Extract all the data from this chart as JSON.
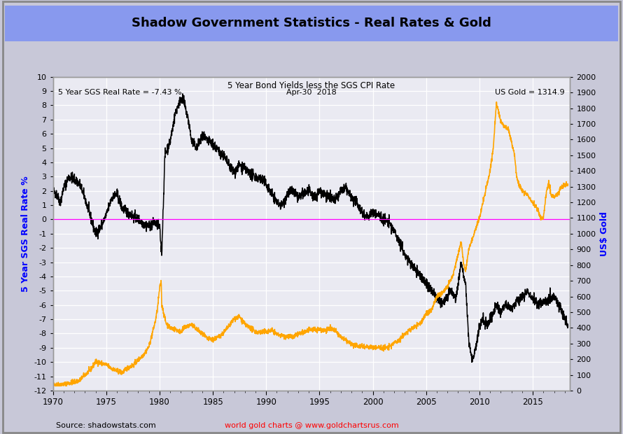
{
  "title": "Shadow Government Statistics - Real Rates & Gold",
  "subtitle": "5 Year Bond Yields less the SGS CPI Rate",
  "annotation_left": "5 Year SGS Real Rate = -7.43 %",
  "annotation_center": "Apr-30  2018",
  "annotation_right": "US Gold = 1314.9",
  "ylabel_left": "5 Year SGS Real Rate %",
  "ylabel_right": "US$ Gold",
  "source_left": "Source: shadowstats.com",
  "source_right": "world gold charts @ www.goldchartsrus.com",
  "ylim_left": [
    -12,
    10
  ],
  "ylim_right": [
    0,
    2000
  ],
  "xlim": [
    1970,
    2018.5
  ],
  "title_bg_color": "#8899ee",
  "chart_bg_color": "#eaeaf2",
  "grid_color": "#ffffff",
  "zero_line_color": "#ff00ff",
  "black_line_color": "#000000",
  "gold_line_color": "#FFA500",
  "border_color": "#999999",
  "outer_bg_color": "#c8c8d8",
  "rate_anchors": [
    [
      1970.0,
      2.0
    ],
    [
      1970.3,
      1.8
    ],
    [
      1970.7,
      1.2
    ],
    [
      1971.0,
      2.2
    ],
    [
      1971.5,
      3.0
    ],
    [
      1972.0,
      2.8
    ],
    [
      1972.5,
      2.5
    ],
    [
      1973.0,
      1.5
    ],
    [
      1973.5,
      0.2
    ],
    [
      1974.0,
      -1.0
    ],
    [
      1974.5,
      -0.5
    ],
    [
      1975.0,
      0.3
    ],
    [
      1975.5,
      1.5
    ],
    [
      1976.0,
      1.8
    ],
    [
      1976.5,
      0.8
    ],
    [
      1977.0,
      0.5
    ],
    [
      1977.5,
      0.2
    ],
    [
      1978.0,
      0.0
    ],
    [
      1978.5,
      -0.3
    ],
    [
      1979.0,
      -0.5
    ],
    [
      1979.5,
      -0.2
    ],
    [
      1980.0,
      -0.5
    ],
    [
      1980.2,
      -2.5
    ],
    [
      1980.5,
      4.5
    ],
    [
      1981.0,
      5.5
    ],
    [
      1981.5,
      7.5
    ],
    [
      1982.0,
      8.5
    ],
    [
      1982.3,
      8.2
    ],
    [
      1982.7,
      7.0
    ],
    [
      1983.0,
      5.5
    ],
    [
      1983.5,
      5.0
    ],
    [
      1984.0,
      5.8
    ],
    [
      1984.5,
      5.5
    ],
    [
      1985.0,
      5.3
    ],
    [
      1985.5,
      4.8
    ],
    [
      1986.0,
      4.5
    ],
    [
      1986.5,
      3.8
    ],
    [
      1987.0,
      3.3
    ],
    [
      1987.5,
      3.8
    ],
    [
      1988.0,
      3.5
    ],
    [
      1988.5,
      3.2
    ],
    [
      1989.0,
      3.0
    ],
    [
      1989.5,
      2.8
    ],
    [
      1990.0,
      2.5
    ],
    [
      1990.5,
      1.8
    ],
    [
      1991.0,
      1.2
    ],
    [
      1991.5,
      1.0
    ],
    [
      1992.0,
      1.8
    ],
    [
      1992.5,
      2.0
    ],
    [
      1993.0,
      1.5
    ],
    [
      1993.5,
      1.8
    ],
    [
      1994.0,
      2.0
    ],
    [
      1994.5,
      1.5
    ],
    [
      1995.0,
      2.0
    ],
    [
      1995.5,
      1.8
    ],
    [
      1996.0,
      1.5
    ],
    [
      1996.5,
      1.3
    ],
    [
      1997.0,
      2.0
    ],
    [
      1997.5,
      2.2
    ],
    [
      1998.0,
      1.5
    ],
    [
      1998.5,
      1.2
    ],
    [
      1999.0,
      0.5
    ],
    [
      1999.5,
      0.2
    ],
    [
      2000.0,
      0.5
    ],
    [
      2000.5,
      0.3
    ],
    [
      2001.0,
      0.0
    ],
    [
      2001.5,
      -0.2
    ],
    [
      2002.0,
      -0.8
    ],
    [
      2002.5,
      -1.5
    ],
    [
      2003.0,
      -2.5
    ],
    [
      2003.5,
      -3.0
    ],
    [
      2004.0,
      -3.5
    ],
    [
      2004.5,
      -4.0
    ],
    [
      2005.0,
      -4.5
    ],
    [
      2005.5,
      -5.0
    ],
    [
      2006.0,
      -5.5
    ],
    [
      2006.5,
      -5.8
    ],
    [
      2007.0,
      -5.5
    ],
    [
      2007.3,
      -5.0
    ],
    [
      2007.5,
      -5.2
    ],
    [
      2007.8,
      -5.5
    ],
    [
      2008.0,
      -4.5
    ],
    [
      2008.3,
      -3.0
    ],
    [
      2008.7,
      -4.5
    ],
    [
      2009.0,
      -8.5
    ],
    [
      2009.3,
      -9.8
    ],
    [
      2009.5,
      -9.5
    ],
    [
      2009.8,
      -8.5
    ],
    [
      2010.0,
      -7.5
    ],
    [
      2010.3,
      -7.0
    ],
    [
      2010.7,
      -7.5
    ],
    [
      2011.0,
      -7.0
    ],
    [
      2011.3,
      -6.5
    ],
    [
      2011.7,
      -6.0
    ],
    [
      2012.0,
      -6.5
    ],
    [
      2012.5,
      -6.0
    ],
    [
      2013.0,
      -6.2
    ],
    [
      2013.5,
      -5.8
    ],
    [
      2014.0,
      -5.5
    ],
    [
      2014.5,
      -5.0
    ],
    [
      2015.0,
      -5.5
    ],
    [
      2015.5,
      -6.0
    ],
    [
      2016.0,
      -5.8
    ],
    [
      2016.5,
      -5.5
    ],
    [
      2017.0,
      -5.5
    ],
    [
      2017.5,
      -6.0
    ],
    [
      2018.0,
      -7.0
    ],
    [
      2018.3,
      -7.43
    ]
  ],
  "gold_anchors": [
    [
      1970.0,
      36
    ],
    [
      1971.0,
      40
    ],
    [
      1972.0,
      55
    ],
    [
      1972.5,
      65
    ],
    [
      1973.0,
      100
    ],
    [
      1973.5,
      130
    ],
    [
      1974.0,
      185
    ],
    [
      1974.5,
      175
    ],
    [
      1975.0,
      165
    ],
    [
      1975.5,
      140
    ],
    [
      1976.0,
      125
    ],
    [
      1976.5,
      115
    ],
    [
      1977.0,
      145
    ],
    [
      1977.5,
      160
    ],
    [
      1978.0,
      195
    ],
    [
      1978.5,
      230
    ],
    [
      1979.0,
      280
    ],
    [
      1979.3,
      360
    ],
    [
      1979.6,
      440
    ],
    [
      1979.8,
      520
    ],
    [
      1980.0,
      650
    ],
    [
      1980.15,
      700
    ],
    [
      1980.2,
      550
    ],
    [
      1980.4,
      490
    ],
    [
      1980.6,
      430
    ],
    [
      1981.0,
      400
    ],
    [
      1981.5,
      390
    ],
    [
      1982.0,
      375
    ],
    [
      1982.5,
      410
    ],
    [
      1983.0,
      420
    ],
    [
      1983.5,
      390
    ],
    [
      1984.0,
      360
    ],
    [
      1984.5,
      330
    ],
    [
      1985.0,
      325
    ],
    [
      1985.5,
      340
    ],
    [
      1986.0,
      370
    ],
    [
      1986.5,
      410
    ],
    [
      1987.0,
      460
    ],
    [
      1987.5,
      470
    ],
    [
      1988.0,
      420
    ],
    [
      1988.5,
      400
    ],
    [
      1989.0,
      375
    ],
    [
      1989.5,
      370
    ],
    [
      1990.0,
      375
    ],
    [
      1990.5,
      385
    ],
    [
      1991.0,
      360
    ],
    [
      1991.5,
      350
    ],
    [
      1992.0,
      345
    ],
    [
      1992.5,
      340
    ],
    [
      1993.0,
      360
    ],
    [
      1993.5,
      370
    ],
    [
      1994.0,
      385
    ],
    [
      1994.5,
      390
    ],
    [
      1995.0,
      390
    ],
    [
      1995.5,
      385
    ],
    [
      1996.0,
      395
    ],
    [
      1996.5,
      380
    ],
    [
      1997.0,
      340
    ],
    [
      1997.5,
      320
    ],
    [
      1998.0,
      295
    ],
    [
      1998.5,
      285
    ],
    [
      1999.0,
      285
    ],
    [
      1999.5,
      280
    ],
    [
      2000.0,
      275
    ],
    [
      2000.5,
      275
    ],
    [
      2001.0,
      272
    ],
    [
      2001.5,
      275
    ],
    [
      2002.0,
      305
    ],
    [
      2002.5,
      325
    ],
    [
      2003.0,
      360
    ],
    [
      2003.5,
      390
    ],
    [
      2004.0,
      410
    ],
    [
      2004.5,
      430
    ],
    [
      2005.0,
      490
    ],
    [
      2005.5,
      510
    ],
    [
      2006.0,
      600
    ],
    [
      2006.5,
      625
    ],
    [
      2007.0,
      660
    ],
    [
      2007.5,
      730
    ],
    [
      2008.0,
      870
    ],
    [
      2008.3,
      950
    ],
    [
      2008.5,
      820
    ],
    [
      2008.7,
      760
    ],
    [
      2009.0,
      900
    ],
    [
      2009.5,
      1000
    ],
    [
      2010.0,
      1100
    ],
    [
      2010.5,
      1250
    ],
    [
      2011.0,
      1400
    ],
    [
      2011.3,
      1550
    ],
    [
      2011.6,
      1830
    ],
    [
      2011.8,
      1780
    ],
    [
      2012.0,
      1720
    ],
    [
      2012.3,
      1680
    ],
    [
      2012.7,
      1670
    ],
    [
      2013.0,
      1590
    ],
    [
      2013.3,
      1500
    ],
    [
      2013.5,
      1350
    ],
    [
      2013.8,
      1300
    ],
    [
      2014.0,
      1270
    ],
    [
      2014.5,
      1250
    ],
    [
      2015.0,
      1200
    ],
    [
      2015.3,
      1170
    ],
    [
      2015.5,
      1150
    ],
    [
      2015.7,
      1100
    ],
    [
      2016.0,
      1100
    ],
    [
      2016.3,
      1280
    ],
    [
      2016.5,
      1330
    ],
    [
      2016.7,
      1250
    ],
    [
      2017.0,
      1230
    ],
    [
      2017.3,
      1250
    ],
    [
      2017.7,
      1300
    ],
    [
      2018.0,
      1310
    ],
    [
      2018.3,
      1315
    ]
  ]
}
